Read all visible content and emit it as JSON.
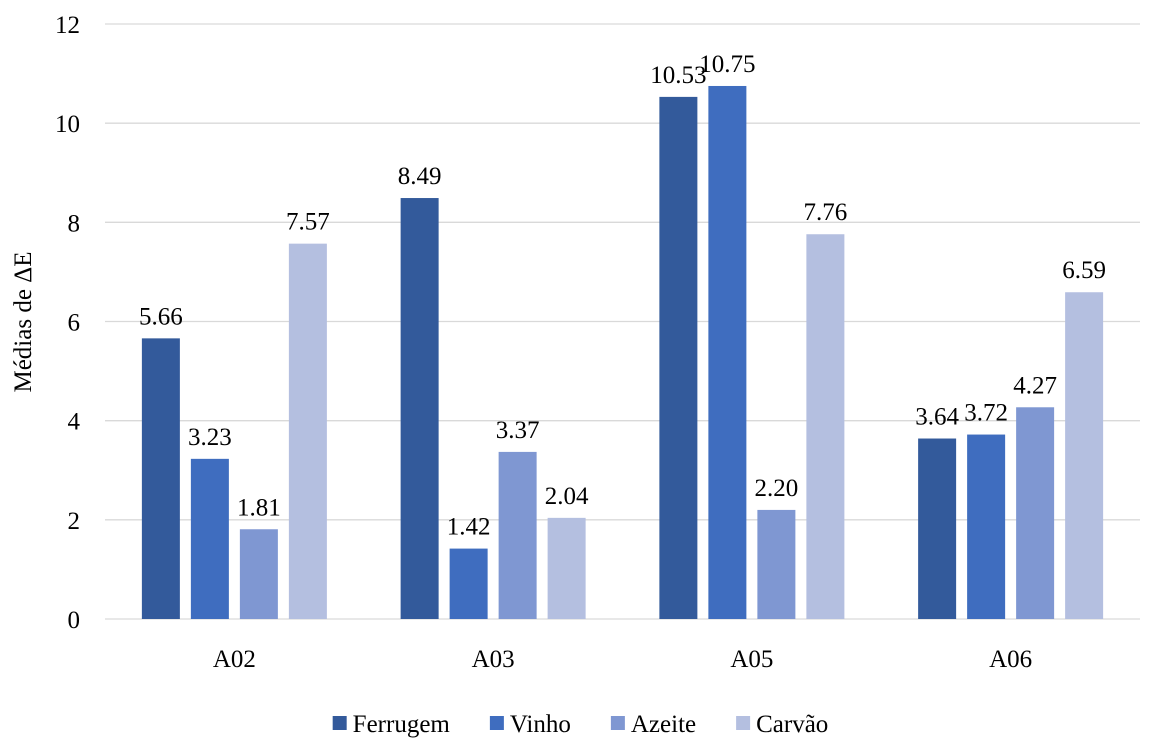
{
  "chart_data": {
    "type": "bar",
    "title": "",
    "xlabel": "",
    "ylabel": "Médias de ΔE",
    "ylim": [
      0,
      12
    ],
    "yticks": [
      0,
      2,
      4,
      6,
      8,
      10,
      12
    ],
    "grid": true,
    "legend_position": "bottom",
    "categories": [
      "A02",
      "A03",
      "A05",
      "A06"
    ],
    "series": [
      {
        "name": "Ferrugem",
        "color": "#335a9b",
        "values": [
          5.66,
          8.49,
          10.53,
          3.64
        ],
        "labels": [
          "5.66",
          "8.49",
          "10.53",
          "3.64"
        ]
      },
      {
        "name": "Vinho",
        "color": "#3f6dbf",
        "values": [
          3.23,
          1.42,
          10.75,
          3.72
        ],
        "labels": [
          "3.23",
          "1.42",
          "10.75",
          "3.72"
        ]
      },
      {
        "name": "Azeite",
        "color": "#7f97d2",
        "values": [
          1.81,
          3.37,
          2.2,
          4.27
        ],
        "labels": [
          "1.81",
          "3.37",
          "2.20",
          "4.27"
        ]
      },
      {
        "name": "Carvão",
        "color": "#b4bfe0",
        "values": [
          7.57,
          2.04,
          7.76,
          6.59
        ],
        "labels": [
          "7.57",
          "2.04",
          "7.76",
          "6.59"
        ]
      }
    ]
  }
}
